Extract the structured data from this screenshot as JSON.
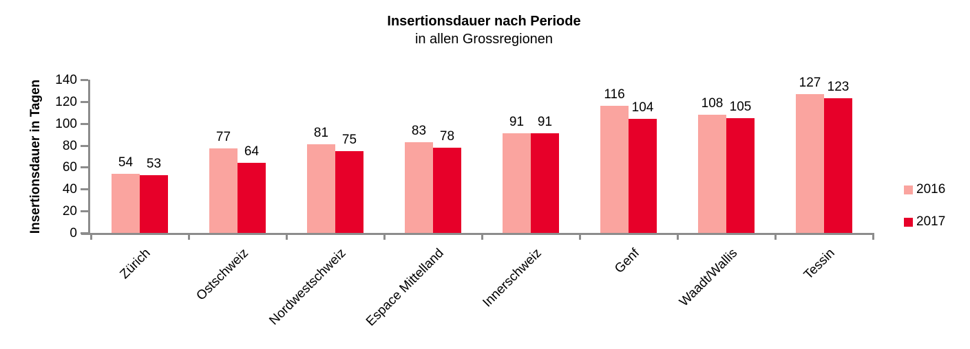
{
  "chart_data": {
    "type": "bar",
    "title": "Insertionsdauer nach Periode",
    "subtitle": "in allen Grossregionen",
    "ylabel": "Insertionsdauer in Tagen",
    "xlabel": "",
    "categories": [
      "Zürich",
      "Ostschweiz",
      "Nordwestschweiz",
      "Espace Mittelland",
      "Innerschweiz",
      "Genf",
      "Waadt/Wallis",
      "Tessin"
    ],
    "series": [
      {
        "name": "2016",
        "color": "#FAA49F",
        "values": [
          54,
          77,
          81,
          83,
          91,
          116,
          108,
          127
        ]
      },
      {
        "name": "2017",
        "color": "#E70029",
        "values": [
          53,
          64,
          75,
          78,
          91,
          104,
          105,
          123
        ]
      }
    ],
    "ylim": [
      0,
      140
    ],
    "yticks": [
      0,
      20,
      40,
      60,
      80,
      100,
      120,
      140
    ],
    "grid": false,
    "legend_position": "right",
    "value_labels": true,
    "axis_color": "#8C8C8C",
    "text_color": "#000000"
  }
}
